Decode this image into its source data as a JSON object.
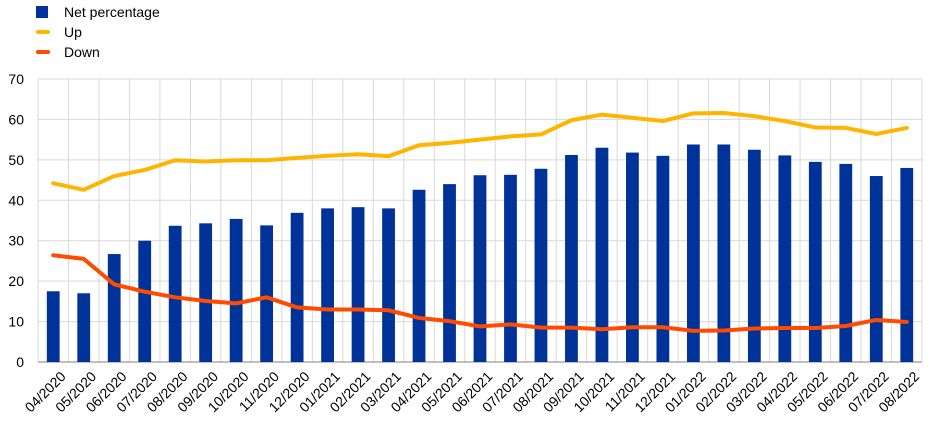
{
  "chart_data": {
    "type": "bar",
    "categories": [
      "04/2020",
      "05/2020",
      "06/2020",
      "07/2020",
      "08/2020",
      "09/2020",
      "10/2020",
      "11/2020",
      "12/2020",
      "01/2021",
      "02/2021",
      "03/2021",
      "04/2021",
      "05/2021",
      "06/2021",
      "07/2021",
      "08/2021",
      "09/2021",
      "10/2021",
      "11/2021",
      "12/2021",
      "01/2022",
      "02/2022",
      "03/2022",
      "04/2022",
      "05/2022",
      "06/2022",
      "07/2022",
      "08/2022"
    ],
    "series": [
      {
        "name": "Net percentage",
        "type": "bar",
        "color": "#003399",
        "values": [
          17.5,
          17.0,
          26.7,
          30.0,
          33.7,
          34.3,
          35.4,
          33.8,
          36.9,
          38.0,
          38.3,
          38.0,
          42.6,
          44.0,
          46.2,
          46.3,
          47.8,
          51.2,
          53.0,
          51.8,
          51.0,
          53.8,
          53.8,
          52.5,
          51.1,
          49.5,
          49.0,
          46.0,
          48.0
        ]
      },
      {
        "name": "Up",
        "type": "line",
        "color": "#FFB400",
        "values": [
          44.2,
          42.6,
          46.0,
          47.5,
          49.9,
          49.6,
          49.9,
          49.9,
          50.5,
          51.0,
          51.4,
          50.9,
          53.6,
          54.2,
          55.0,
          55.8,
          56.3,
          59.8,
          61.2,
          60.4,
          59.6,
          61.5,
          61.6,
          60.8,
          59.6,
          58.0,
          57.9,
          56.4,
          57.9
        ]
      },
      {
        "name": "Down",
        "type": "line",
        "color": "#FF4B00",
        "values": [
          26.4,
          25.5,
          19.2,
          17.4,
          16.0,
          15.1,
          14.5,
          16.0,
          13.5,
          13.0,
          13.0,
          12.8,
          10.9,
          10.1,
          8.8,
          9.3,
          8.5,
          8.5,
          8.1,
          8.6,
          8.6,
          7.7,
          7.8,
          8.3,
          8.4,
          8.4,
          8.9,
          10.4,
          9.9
        ]
      }
    ],
    "ylim": [
      0,
      70
    ],
    "yticks": [
      0,
      10,
      20,
      30,
      40,
      50,
      60,
      70
    ],
    "grid": true,
    "legend_position": "top-left"
  }
}
